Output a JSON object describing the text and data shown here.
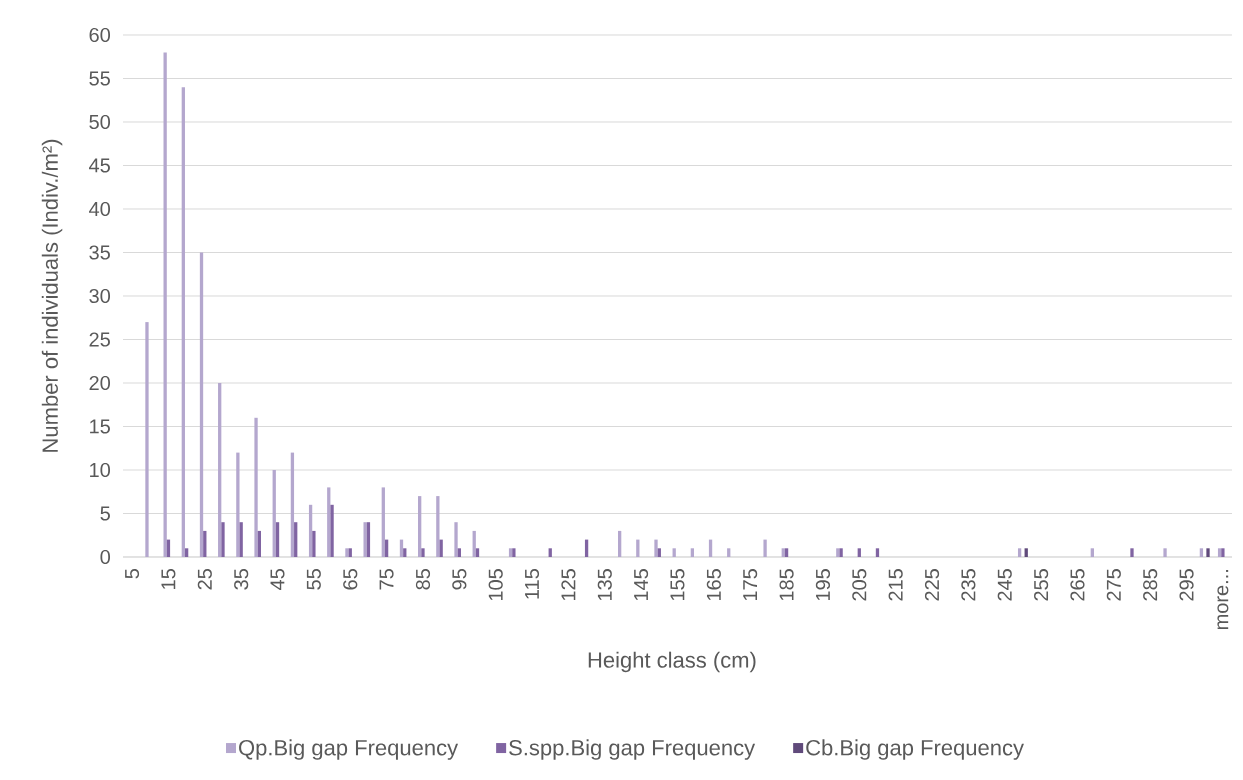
{
  "chart_data": {
    "type": "bar",
    "xlabel": "Height class (cm)",
    "ylabel": "Number of individuals (Indiv./m²)",
    "categories": [
      "5",
      null,
      "15",
      null,
      "25",
      null,
      "35",
      null,
      "45",
      null,
      "55",
      null,
      "65",
      null,
      "75",
      null,
      "85",
      null,
      "95",
      null,
      "105",
      null,
      "115",
      null,
      "125",
      null,
      "135",
      null,
      "145",
      null,
      "155",
      null,
      "165",
      null,
      "175",
      null,
      "185",
      null,
      "195",
      null,
      "205",
      null,
      "215",
      null,
      "225",
      null,
      "235",
      null,
      "245",
      null,
      "255",
      null,
      "265",
      null,
      "275",
      null,
      "285",
      null,
      "295",
      null,
      "more..."
    ],
    "series": [
      {
        "name": "Qp.Big gap Frequency",
        "color": "#b4a7ce",
        "values": [
          0,
          27,
          58,
          54,
          35,
          20,
          12,
          16,
          10,
          12,
          6,
          8,
          1,
          4,
          8,
          2,
          7,
          7,
          4,
          3,
          0,
          1,
          0,
          0,
          0,
          0,
          0,
          3,
          2,
          2,
          1,
          1,
          2,
          1,
          0,
          2,
          1,
          0,
          0,
          1,
          0,
          0,
          0,
          0,
          0,
          0,
          0,
          0,
          0,
          1,
          0,
          0,
          0,
          1,
          0,
          0,
          0,
          1,
          0,
          1,
          1
        ]
      },
      {
        "name": "S.spp.Big gap Frequency",
        "color": "#8064a2",
        "values": [
          0,
          0,
          2,
          1,
          3,
          4,
          4,
          3,
          4,
          4,
          3,
          6,
          1,
          4,
          2,
          1,
          1,
          2,
          1,
          1,
          0,
          1,
          0,
          1,
          0,
          2,
          0,
          0,
          0,
          1,
          0,
          0,
          0,
          0,
          0,
          0,
          1,
          0,
          0,
          1,
          1,
          1,
          0,
          0,
          0,
          0,
          0,
          0,
          0,
          0,
          0,
          0,
          0,
          0,
          0,
          1,
          0,
          0,
          0,
          0,
          1
        ]
      },
      {
        "name": "Cb.Big gap Frequency",
        "color": "#604a7b",
        "values": [
          0,
          0,
          0,
          0,
          0,
          0,
          0,
          0,
          0,
          0,
          0,
          0,
          0,
          0,
          0,
          0,
          0,
          0,
          0,
          0,
          0,
          0,
          0,
          0,
          0,
          0,
          0,
          0,
          0,
          0,
          0,
          0,
          0,
          0,
          0,
          0,
          0,
          0,
          0,
          0,
          0,
          0,
          0,
          0,
          0,
          0,
          0,
          0,
          0,
          1,
          0,
          0,
          0,
          0,
          0,
          0,
          0,
          0,
          0,
          1,
          0
        ]
      }
    ],
    "ylim": [
      0,
      60
    ],
    "yticks": [
      0,
      5,
      10,
      15,
      20,
      25,
      30,
      35,
      40,
      45,
      50,
      55,
      60
    ],
    "grid": "y",
    "legend": "bottom"
  }
}
